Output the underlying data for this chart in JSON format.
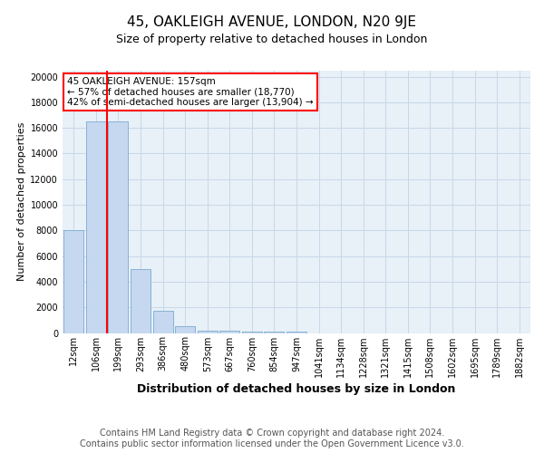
{
  "title_line1": "45, OAKLEIGH AVENUE, LONDON, N20 9JE",
  "title_line2": "Size of property relative to detached houses in London",
  "xlabel": "Distribution of detached houses by size in London",
  "ylabel": "Number of detached properties",
  "bar_labels": [
    "12sqm",
    "106sqm",
    "199sqm",
    "293sqm",
    "386sqm",
    "480sqm",
    "573sqm",
    "667sqm",
    "760sqm",
    "854sqm",
    "947sqm",
    "1041sqm",
    "1134sqm",
    "1228sqm",
    "1321sqm",
    "1415sqm",
    "1508sqm",
    "1602sqm",
    "1695sqm",
    "1789sqm",
    "1882sqm"
  ],
  "bar_heights": [
    8000,
    16500,
    16500,
    5000,
    1750,
    500,
    200,
    150,
    100,
    80,
    80,
    0,
    0,
    0,
    0,
    0,
    0,
    0,
    0,
    0,
    0
  ],
  "bar_color": "#c5d8ef",
  "bar_edge_color": "#7aacce",
  "property_line_x": 1.5,
  "property_line_color": "red",
  "annotation_text": "45 OAKLEIGH AVENUE: 157sqm\n← 57% of detached houses are smaller (18,770)\n42% of semi-detached houses are larger (13,904) →",
  "annotation_box_color": "white",
  "annotation_box_edge": "red",
  "ylim": [
    0,
    20500
  ],
  "yticks": [
    0,
    2000,
    4000,
    6000,
    8000,
    10000,
    12000,
    14000,
    16000,
    18000,
    20000
  ],
  "grid_color": "#c8d8e8",
  "bg_color": "#e8f0f8",
  "footer_text": "Contains HM Land Registry data © Crown copyright and database right 2024.\nContains public sector information licensed under the Open Government Licence v3.0.",
  "footnote_fontsize": 7,
  "title1_fontsize": 11,
  "title2_fontsize": 9,
  "xlabel_fontsize": 9,
  "ylabel_fontsize": 8,
  "tick_fontsize": 7,
  "annotation_fontsize": 7.5
}
